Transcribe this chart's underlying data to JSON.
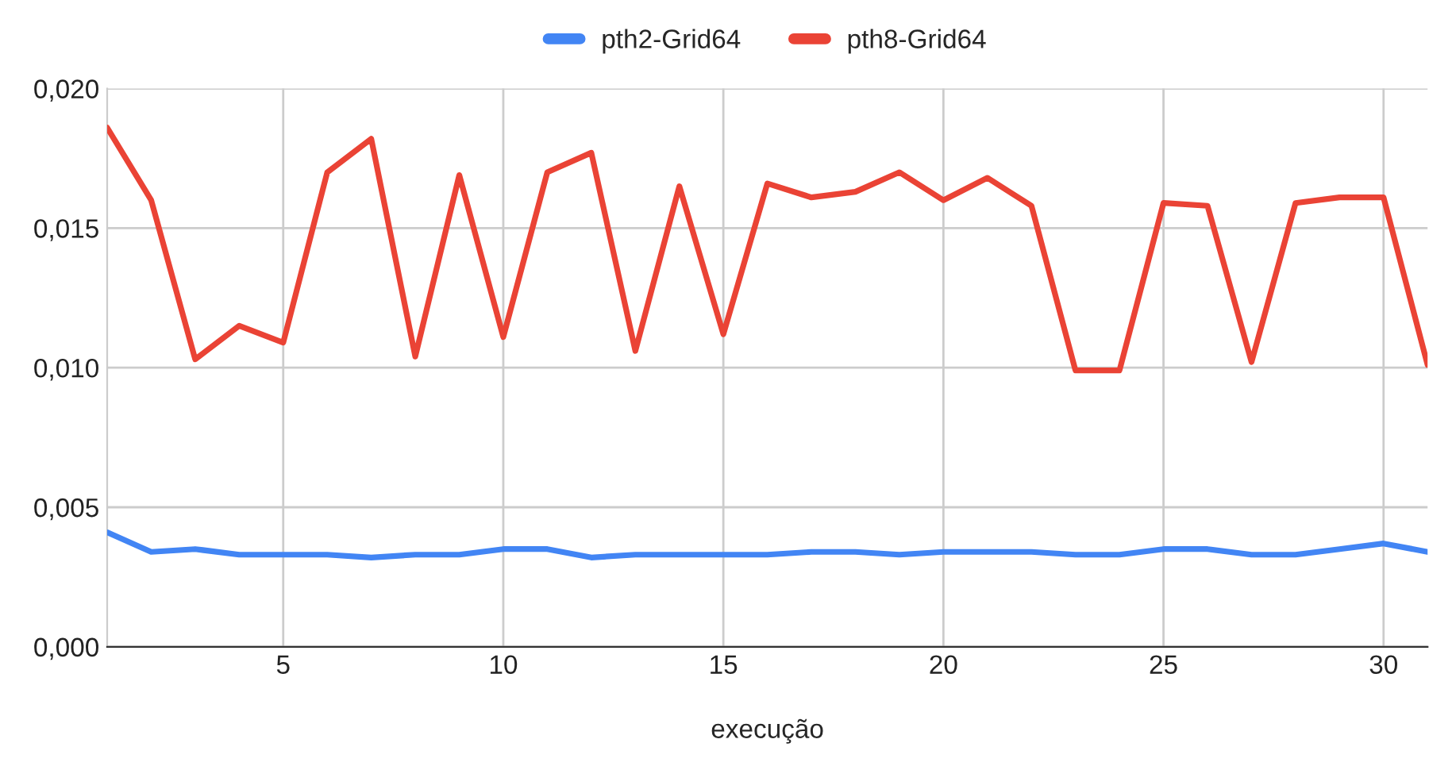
{
  "chart_data": {
    "type": "line",
    "xlabel": "execução",
    "x": [
      1,
      2,
      3,
      4,
      5,
      6,
      7,
      8,
      9,
      10,
      11,
      12,
      13,
      14,
      15,
      16,
      17,
      18,
      19,
      20,
      21,
      22,
      23,
      24,
      25,
      26,
      27,
      28,
      29,
      30,
      31
    ],
    "series": [
      {
        "name": "pth2-Grid64",
        "color": "#4285f4",
        "values": [
          0.0041,
          0.0034,
          0.0035,
          0.0033,
          0.0033,
          0.0033,
          0.0032,
          0.0033,
          0.0033,
          0.0035,
          0.0035,
          0.0032,
          0.0033,
          0.0033,
          0.0033,
          0.0033,
          0.0034,
          0.0034,
          0.0033,
          0.0034,
          0.0034,
          0.0034,
          0.0033,
          0.0033,
          0.0035,
          0.0035,
          0.0033,
          0.0033,
          0.0035,
          0.0037,
          0.0034
        ]
      },
      {
        "name": "pth8-Grid64",
        "color": "#ea4335",
        "values": [
          0.0186,
          0.016,
          0.0103,
          0.0115,
          0.0109,
          0.017,
          0.0182,
          0.0104,
          0.0169,
          0.0111,
          0.017,
          0.0177,
          0.0106,
          0.0165,
          0.0112,
          0.0166,
          0.0161,
          0.0163,
          0.017,
          0.016,
          0.0168,
          0.0158,
          0.0099,
          0.0099,
          0.0159,
          0.0158,
          0.0102,
          0.0159,
          0.0161,
          0.0161,
          0.0101
        ]
      }
    ],
    "xlim": [
      1,
      31
    ],
    "xticks": [
      5,
      10,
      15,
      20,
      25,
      30
    ],
    "ylim": [
      0,
      0.02
    ],
    "yticks": [
      {
        "value": 0,
        "label": "0,000"
      },
      {
        "value": 0.005,
        "label": "0,005"
      },
      {
        "value": 0.01,
        "label": "0,010"
      },
      {
        "value": 0.015,
        "label": "0,015"
      },
      {
        "value": 0.02,
        "label": "0,020"
      }
    ],
    "grid": true,
    "legend": "top",
    "marker": "none",
    "line_style": "solid"
  }
}
